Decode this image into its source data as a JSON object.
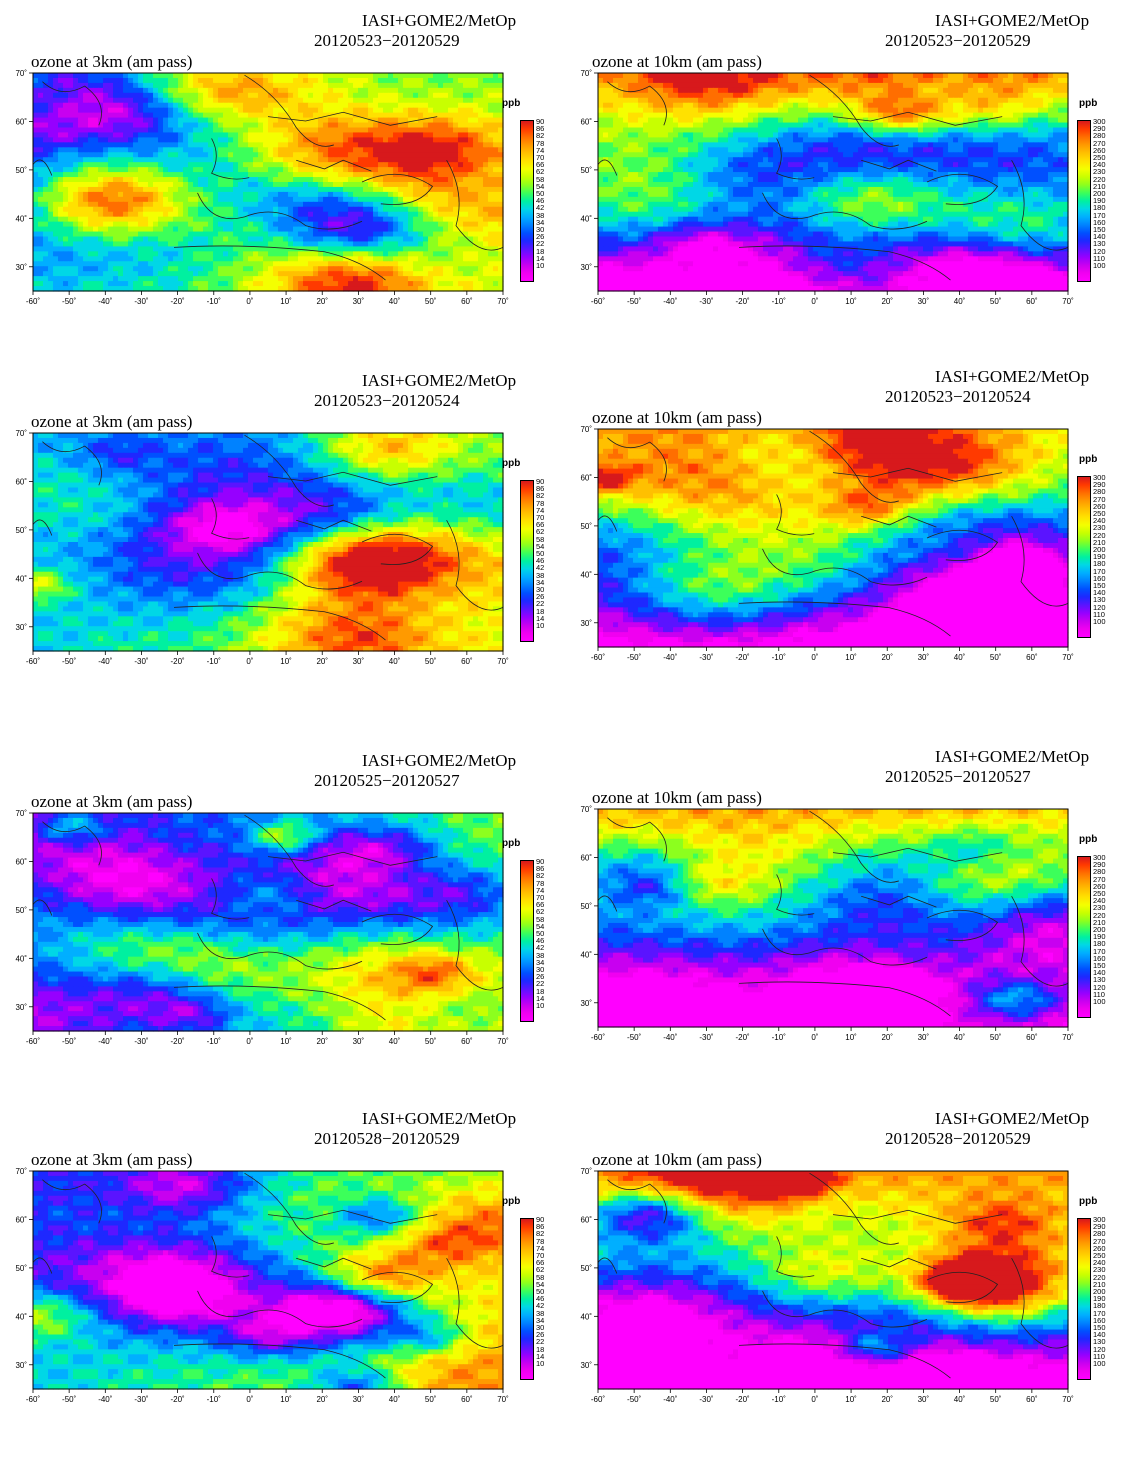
{
  "panels": [
    {
      "product": "IASI+GOME2/MetOp",
      "dates": "20120523−20120529",
      "title": "ozone at 3km (am pass)",
      "unit": "ppb",
      "colorbar": [
        "90",
        "86",
        "82",
        "78",
        "74",
        "70",
        "66",
        "62",
        "58",
        "54",
        "50",
        "46",
        "42",
        "38",
        "34",
        "30",
        "26",
        "22",
        "18",
        "14",
        "10"
      ],
      "scale": "low"
    },
    {
      "product": "IASI+GOME2/MetOp",
      "dates": "20120523−20120529",
      "title": "ozone at 10km (am pass)",
      "unit": "ppb",
      "colorbar": [
        "300",
        "290",
        "280",
        "270",
        "260",
        "250",
        "240",
        "230",
        "220",
        "210",
        "200",
        "190",
        "180",
        "170",
        "160",
        "150",
        "140",
        "130",
        "120",
        "110",
        "100"
      ],
      "scale": "high"
    },
    {
      "product": "IASI+GOME2/MetOp",
      "dates": "20120523−20120524",
      "title": "ozone at 3km (am pass)",
      "unit": "ppb",
      "colorbar": [
        "90",
        "86",
        "82",
        "78",
        "74",
        "70",
        "66",
        "62",
        "58",
        "54",
        "50",
        "46",
        "42",
        "38",
        "34",
        "30",
        "26",
        "22",
        "18",
        "14",
        "10"
      ],
      "scale": "low"
    },
    {
      "product": "IASI+GOME2/MetOp",
      "dates": "20120523−20120524",
      "title": "ozone at 10km (am pass)",
      "unit": "ppb",
      "colorbar": [
        "300",
        "290",
        "280",
        "270",
        "260",
        "250",
        "240",
        "230",
        "220",
        "210",
        "200",
        "190",
        "180",
        "170",
        "160",
        "150",
        "140",
        "130",
        "120",
        "110",
        "100"
      ],
      "scale": "high"
    },
    {
      "product": "IASI+GOME2/MetOp",
      "dates": "20120525−20120527",
      "title": "ozone at 3km (am pass)",
      "unit": "ppb",
      "colorbar": [
        "90",
        "86",
        "82",
        "78",
        "74",
        "70",
        "66",
        "62",
        "58",
        "54",
        "50",
        "46",
        "42",
        "38",
        "34",
        "30",
        "26",
        "22",
        "18",
        "14",
        "10"
      ],
      "scale": "low"
    },
    {
      "product": "IASI+GOME2/MetOp",
      "dates": "20120525−20120527",
      "title": "ozone at 10km (am pass)",
      "unit": "ppb",
      "colorbar": [
        "300",
        "290",
        "280",
        "270",
        "260",
        "250",
        "240",
        "230",
        "220",
        "210",
        "200",
        "190",
        "180",
        "170",
        "160",
        "150",
        "140",
        "130",
        "120",
        "110",
        "100"
      ],
      "scale": "high"
    },
    {
      "product": "IASI+GOME2/MetOp",
      "dates": "20120528−20120529",
      "title": "ozone at 3km (am pass)",
      "unit": "ppb",
      "colorbar": [
        "90",
        "86",
        "82",
        "78",
        "74",
        "70",
        "66",
        "62",
        "58",
        "54",
        "50",
        "46",
        "42",
        "38",
        "34",
        "30",
        "26",
        "22",
        "18",
        "14",
        "10"
      ],
      "scale": "low"
    },
    {
      "product": "IASI+GOME2/MetOp",
      "dates": "20120528−20120529",
      "title": "ozone at 10km (am pass)",
      "unit": "ppb",
      "colorbar": [
        "300",
        "290",
        "280",
        "270",
        "260",
        "250",
        "240",
        "230",
        "220",
        "210",
        "200",
        "190",
        "180",
        "170",
        "160",
        "150",
        "140",
        "130",
        "120",
        "110",
        "100"
      ],
      "scale": "high"
    }
  ],
  "axes": {
    "lon_ticks": [
      "-60˚",
      "-50˚",
      "-40˚",
      "-30˚",
      "-20˚",
      "-10˚",
      "0˚",
      "10˚",
      "20˚",
      "30˚",
      "40˚",
      "50˚",
      "60˚",
      "70˚"
    ],
    "lat_ticks": [
      "70˚",
      "60˚",
      "50˚",
      "40˚",
      "30˚"
    ],
    "lon_range": [
      -60,
      70
    ],
    "lat_range": [
      25,
      70
    ]
  },
  "colors": {
    "scale": [
      "#d7191c",
      "#ff3a00",
      "#ff6e00",
      "#ff9a00",
      "#ffc000",
      "#ffe100",
      "#f4ff00",
      "#c8ff00",
      "#8cff1e",
      "#3cff5a",
      "#00f0a0",
      "#00d7e6",
      "#00afff",
      "#0082ff",
      "#0050ff",
      "#1e28ff",
      "#5a14ff",
      "#9600ff",
      "#c800f0",
      "#f000f0",
      "#ff00ff"
    ]
  }
}
